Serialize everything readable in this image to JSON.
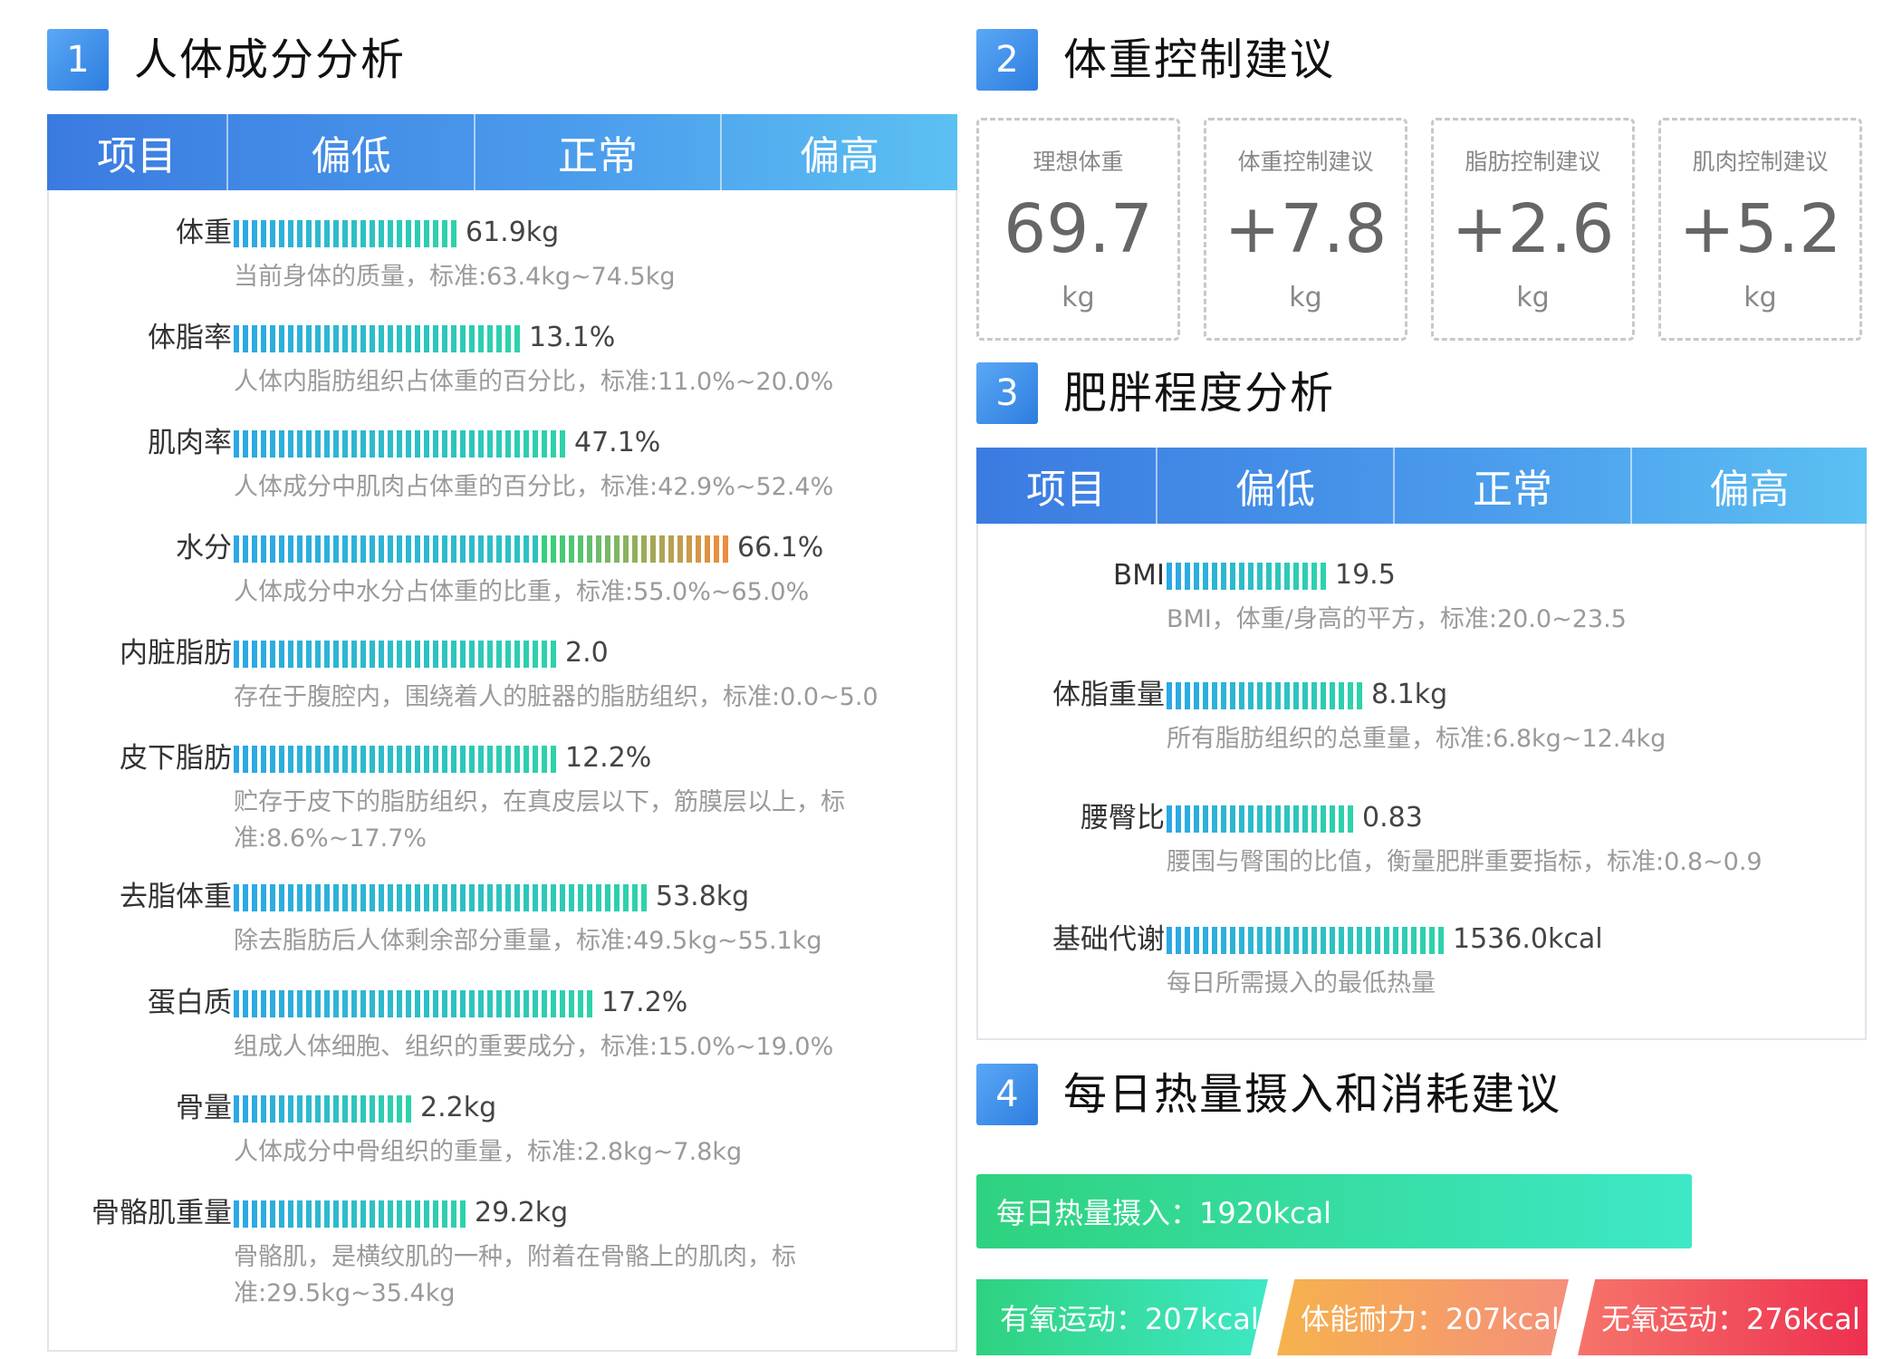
{
  "colors": {
    "accent": "#3b7be0",
    "bar_teal": "#2cc9c2",
    "bar_blue": "#34a4e6",
    "bar_green": "#2fd27f",
    "bar_orange": "#f0a04b"
  },
  "s1": {
    "num": "1",
    "title": "人体成分分析",
    "cols": [
      "项目",
      "偏低",
      "正常",
      "偏高"
    ],
    "rows": [
      {
        "label": "体重",
        "value": "61.9kg",
        "fill": 0.45,
        "desc": "当前身体的质量，标准:63.4kg~74.5kg"
      },
      {
        "label": "体脂率",
        "value": "13.1%",
        "fill": 0.58,
        "desc": "人体内脂肪组织占体重的百分比，标准:11.0%~20.0%"
      },
      {
        "label": "肌肉率",
        "value": "47.1%",
        "fill": 0.68,
        "desc": "人体成分中肌肉占体重的百分比，标准:42.9%~52.4%"
      },
      {
        "label": "水分",
        "value": "66.1%",
        "fill": 1.0,
        "desc": "人体成分中水分占体重的比重，标准:55.0%~65.0%"
      },
      {
        "label": "内脏脂肪",
        "value": "2.0",
        "fill": 0.66,
        "desc": "存在于腹腔内，围绕着人的脏器的脂肪组织，标准:0.0~5.0"
      },
      {
        "label": "皮下脂肪",
        "value": "12.2%",
        "fill": 0.66,
        "desc": "贮存于皮下的脂肪组织，在真皮层以下，筋膜层以上，标准:8.6%~17.7%"
      },
      {
        "label": "去脂体重",
        "value": "53.8kg",
        "fill": 0.83,
        "desc": "除去脂肪后人体剩余部分重量，标准:49.5kg~55.1kg"
      },
      {
        "label": "蛋白质",
        "value": "17.2%",
        "fill": 0.73,
        "desc": "组成人体细胞、组织的重要成分，标准:15.0%~19.0%"
      },
      {
        "label": "骨量",
        "value": "2.2kg",
        "fill": 0.37,
        "desc": "人体成分中骨组织的重量，标准:2.8kg~7.8kg"
      },
      {
        "label": "骨骼肌重量",
        "value": "29.2kg",
        "fill": 0.47,
        "desc": "骨骼肌，是横纹肌的一种，附着在骨骼上的肌肉，标准:29.5kg~35.4kg"
      }
    ]
  },
  "s2": {
    "num": "2",
    "title": "体重控制建议",
    "cards": [
      {
        "title": "理想体重",
        "value": "69.7",
        "unit": "kg"
      },
      {
        "title": "体重控制建议",
        "value": "+7.8",
        "unit": "kg"
      },
      {
        "title": "脂肪控制建议",
        "value": "+2.6",
        "unit": "kg"
      },
      {
        "title": "肌肉控制建议",
        "value": "+5.2",
        "unit": "kg"
      }
    ]
  },
  "s3": {
    "num": "3",
    "title": "肥胖程度分析",
    "cols": [
      "项目",
      "偏低",
      "正常",
      "偏高"
    ],
    "rows": [
      {
        "label": "BMI",
        "value": "19.5",
        "fill": 0.41,
        "desc": "BMI，体重/身高的平方，标准:20.0~23.5"
      },
      {
        "label": "体脂重量",
        "value": "8.1kg",
        "fill": 0.52,
        "desc": "所有脂肪组织的总重量，标准:6.8kg~12.4kg"
      },
      {
        "label": "腰臀比",
        "value": "0.83",
        "fill": 0.49,
        "desc": "腰围与臀围的比值，衡量肥胖重要指标，标准:0.8~0.9"
      },
      {
        "label": "基础代谢",
        "value": "1536.0kcal",
        "fill": 0.72,
        "desc": "每日所需摄入的最低热量"
      }
    ]
  },
  "s4": {
    "num": "4",
    "title": "每日热量摄入和消耗建议",
    "intake": "每日热量摄入：1920kcal",
    "aerobic": "有氧运动：207kcal",
    "endurance": "体能耐力：207kcal",
    "anaerobic": "无氧运动：276kcal"
  }
}
